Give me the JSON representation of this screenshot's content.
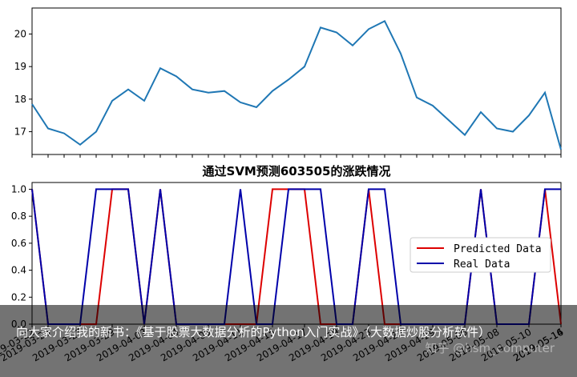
{
  "chart_data": [
    {
      "type": "line",
      "title": "",
      "xlabel": "",
      "ylabel": "",
      "ylim": [
        16.3,
        20.8
      ],
      "yticks": [
        "17",
        "18",
        "19",
        "20"
      ],
      "grid": false,
      "series": [
        {
          "values": [
            17.85,
            17.1,
            16.95,
            16.6,
            17.0,
            17.95,
            18.3,
            17.95,
            18.95,
            18.7,
            18.3,
            18.2,
            18.25,
            17.9,
            17.75,
            18.25,
            18.6,
            19.0,
            20.2,
            20.05,
            19.65,
            20.15,
            20.4,
            19.4,
            18.05,
            17.8,
            17.35,
            16.9,
            17.6,
            17.1,
            17.0,
            17.5,
            18.2,
            16.45
          ],
          "color": "#1f77b4"
        }
      ]
    },
    {
      "type": "line",
      "title": "通过SVM预测603505的涨跌情况",
      "xlabel": "",
      "ylabel": "",
      "ylim": [
        0,
        1.05
      ],
      "yticks": [
        "0.0",
        "0.2",
        "0.4",
        "0.6",
        "0.8",
        "1.0"
      ],
      "xtick_labels": [
        "2019-03-22",
        "2019-03-25",
        "2019-03-27",
        "2019-03-29",
        "2019-04-02",
        "2019-04-04",
        "2019-04-09",
        "2019-04-11",
        "2019-04-15",
        "2019-04-17",
        "2019-04-19",
        "2019-04-23",
        "2019-04-25",
        "2019-04-29",
        "2019-05-06",
        "2019-05-08",
        "2019-05-10",
        "2019-05-14",
        "2019-05-16"
      ],
      "legend_position": "right",
      "grid": false,
      "series": [
        {
          "name": "Predicted Data",
          "color": "#dd0000",
          "values": [
            1,
            0,
            0,
            0,
            0,
            1,
            1,
            0,
            1,
            0,
            0,
            0,
            0,
            0,
            0,
            1,
            1,
            1,
            0,
            0,
            0,
            1,
            0,
            0,
            0,
            0,
            0,
            0,
            1,
            0,
            0,
            0,
            1,
            0
          ]
        },
        {
          "name": "Real Data",
          "color": "#0000aa",
          "values": [
            1,
            0,
            0,
            0,
            1,
            1,
            1,
            0,
            1,
            0,
            0,
            0,
            0,
            1,
            0,
            0,
            1,
            1,
            1,
            0,
            0,
            1,
            1,
            0,
            0,
            0,
            0,
            0,
            1,
            0,
            0,
            0,
            1,
            1
          ]
        }
      ]
    }
  ],
  "caption": {
    "text": "向大家介绍我的新书：《基于股票大数据分析的Python入门实战》（大数据炒股分析软件）",
    "watermark": "知乎 @hsm_computer"
  }
}
